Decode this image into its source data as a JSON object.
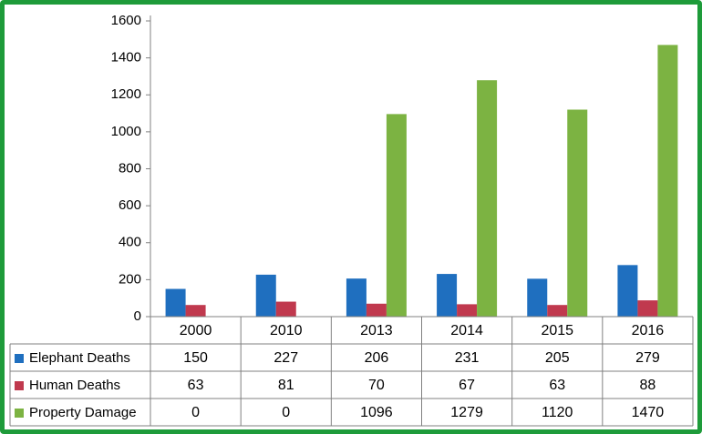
{
  "frame_color": "#1e9b3a",
  "chart_data": {
    "type": "bar",
    "categories": [
      "2000",
      "2010",
      "2013",
      "2014",
      "2015",
      "2016"
    ],
    "series": [
      {
        "name": "Elephant Deaths",
        "color": "#1f6fbf",
        "values": [
          150,
          227,
          206,
          231,
          205,
          279
        ]
      },
      {
        "name": "Human Deaths",
        "color": "#c0394e",
        "values": [
          63,
          81,
          70,
          67,
          63,
          88
        ]
      },
      {
        "name": "Property Damage",
        "color": "#7cb342",
        "values": [
          0,
          0,
          1096,
          1279,
          1120,
          1470
        ]
      }
    ],
    "ylim": [
      0,
      1600
    ],
    "yticks": [
      0,
      200,
      400,
      600,
      800,
      1000,
      1200,
      1400,
      1600
    ],
    "grid": false,
    "legend": "data-table-below",
    "title": "",
    "xlabel": "",
    "ylabel": ""
  }
}
